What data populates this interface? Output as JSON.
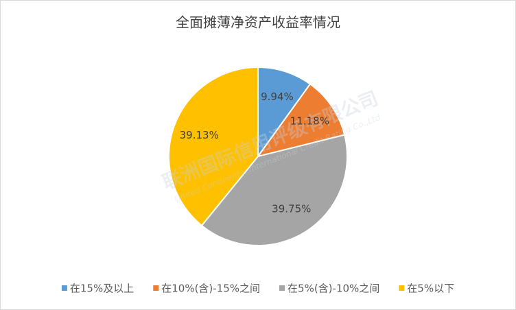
{
  "chart_data": {
    "type": "pie",
    "title": "全面摊薄净资产收益率情况",
    "categories": [
      "在15%及以上",
      "在10%(含)-15%之间",
      "在5%(含)-10%之间",
      "在5%以下"
    ],
    "values": [
      9.94,
      11.18,
      39.75,
      39.13
    ],
    "value_labels": [
      "9.94%",
      "11.18%",
      "39.75%",
      "39.13%"
    ],
    "colors": [
      "#5b9bd5",
      "#ed7d31",
      "#a5a5a5",
      "#ffc000"
    ],
    "legend": "bottom",
    "watermark": [
      "联洲国际信用评级有限公司",
      "United Continental International Credit Rating Co.,Ltd"
    ]
  }
}
